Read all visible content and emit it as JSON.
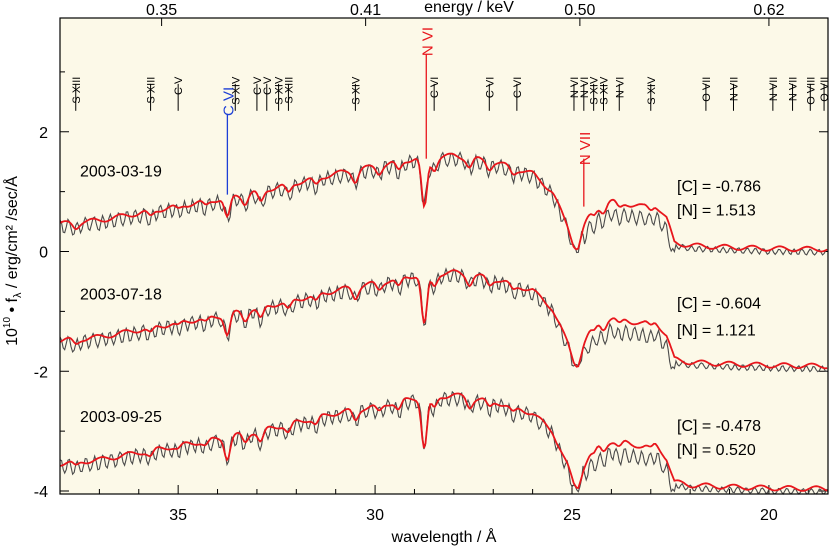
{
  "chart_data": {
    "type": "line",
    "xlabel": "wavelength / Å",
    "ylabel_prefix": "10",
    "ylabel_exp": "10",
    "ylabel_rest": " • f",
    "ylabel_sub": "λ",
    "ylabel_units": " / erg/cm² /sec/Å",
    "top_axis_label": "energy / keV",
    "x_reversed": true,
    "xlim": [
      38,
      18.5
    ],
    "ylim": [
      -4.05,
      3.9
    ],
    "x_ticks": [
      35,
      30,
      25,
      20
    ],
    "y_ticks": [
      2,
      0,
      -2,
      -4
    ],
    "top_ticks": [
      {
        "label": "0.35",
        "wavelength": 35.42
      },
      {
        "label": "0.41",
        "wavelength": 30.24
      },
      {
        "label": "0.50",
        "wavelength": 24.8
      },
      {
        "label": "0.62",
        "wavelength": 20.0
      }
    ],
    "colors": {
      "background": "#fcf9e8",
      "observed": "#4a4a4a",
      "model": "#e8161c",
      "carbon": "#1d3fd6"
    },
    "line_ids": [
      {
        "label": "S XIII",
        "w": 37.6
      },
      {
        "label": "S XIII",
        "w": 35.7
      },
      {
        "label": "C V",
        "w": 35.0
      },
      {
        "label": "S XIV",
        "w": 33.55
      },
      {
        "label": "C V",
        "w": 33.0
      },
      {
        "label": "C V",
        "w": 32.75
      },
      {
        "label": "S XIV",
        "w": 32.45
      },
      {
        "label": "S XIII",
        "w": 32.2
      },
      {
        "label": "S XIV",
        "w": 30.5
      },
      {
        "label": "C VI",
        "w": 28.5
      },
      {
        "label": "C VI",
        "w": 27.1
      },
      {
        "label": "C VI",
        "w": 26.4
      },
      {
        "label": "N VI",
        "w": 24.95
      },
      {
        "label": "N VI",
        "w": 24.7
      },
      {
        "label": "S XIV",
        "w": 24.45
      },
      {
        "label": "S XIV",
        "w": 24.2
      },
      {
        "label": "N VI",
        "w": 23.8
      },
      {
        "label": "S XIV",
        "w": 23.0
      },
      {
        "label": "O VII",
        "w": 21.6
      },
      {
        "label": "N VII",
        "w": 20.9
      },
      {
        "label": "N VII",
        "w": 19.9
      },
      {
        "label": "N VII",
        "w": 19.4
      },
      {
        "label": "O VIII",
        "w": 18.95
      },
      {
        "label": "O VII",
        "w": 18.6
      }
    ],
    "edge_labels": [
      {
        "label": "C VI",
        "color": "carbon",
        "w": 33.75,
        "y_top": 2.75,
        "y_bottom": 0.95
      },
      {
        "label": "N VI",
        "color": "model",
        "w": 28.7,
        "y_top": 3.75,
        "y_bottom": 1.55
      },
      {
        "label": "N VII",
        "color": "model",
        "w": 24.7,
        "y_top": 2.0,
        "y_bottom": 0.75
      }
    ],
    "epochs": [
      {
        "date": "2003-03-19",
        "offset": 0,
        "C": "-0.786",
        "N": "1.513",
        "date_y": 1.35,
        "C_y": 1.1,
        "N_y": 0.7
      },
      {
        "date": "2003-07-18",
        "offset": -1.95,
        "C": "-0.604",
        "N": "1.121",
        "date_y": -0.7,
        "C_y": -0.85,
        "N_y": -1.3
      },
      {
        "date": "2003-09-25",
        "offset": -4.0,
        "C": "-0.478",
        "N": "0.520",
        "date_y": -2.75,
        "C_y": -2.9,
        "N_y": -3.3
      }
    ],
    "continuum": [
      [
        38.0,
        0.46
      ],
      [
        37.0,
        0.52
      ],
      [
        36.0,
        0.64
      ],
      [
        35.0,
        0.76
      ],
      [
        34.0,
        0.87
      ],
      [
        33.0,
        1.0
      ],
      [
        32.0,
        1.15
      ],
      [
        31.0,
        1.3
      ],
      [
        30.0,
        1.42
      ],
      [
        29.0,
        1.55
      ],
      [
        28.0,
        1.6
      ],
      [
        27.0,
        1.5
      ],
      [
        26.0,
        1.3
      ],
      [
        25.5,
        1.0
      ],
      [
        25.1,
        0.4
      ],
      [
        24.95,
        0.1
      ],
      [
        24.85,
        0.05
      ],
      [
        24.7,
        0.4
      ],
      [
        24.5,
        0.7
      ],
      [
        24.2,
        0.82
      ],
      [
        23.8,
        0.85
      ],
      [
        23.5,
        0.78
      ],
      [
        23.2,
        0.75
      ],
      [
        22.9,
        0.8
      ],
      [
        22.6,
        0.55
      ],
      [
        22.4,
        0.15
      ],
      [
        22.0,
        0.1
      ],
      [
        21.0,
        0.07
      ],
      [
        20.0,
        0.05
      ],
      [
        19.0,
        0.04
      ],
      [
        18.5,
        0.04
      ]
    ],
    "absorptions": [
      {
        "w": 37.6,
        "d": 0.08
      },
      {
        "w": 35.7,
        "d": 0.1
      },
      {
        "w": 35.0,
        "d": 0.06
      },
      {
        "w": 34.3,
        "d": 0.08
      },
      {
        "w": 33.75,
        "d": 0.35
      },
      {
        "w": 33.3,
        "d": 0.15
      },
      {
        "w": 32.9,
        "d": 0.2
      },
      {
        "w": 32.2,
        "d": 0.15
      },
      {
        "w": 31.5,
        "d": 0.12
      },
      {
        "w": 30.5,
        "d": 0.18
      },
      {
        "w": 29.9,
        "d": 0.12
      },
      {
        "w": 29.4,
        "d": 0.15
      },
      {
        "w": 28.75,
        "d": 0.85
      },
      {
        "w": 28.5,
        "d": 0.2
      },
      {
        "w": 27.6,
        "d": 0.15
      },
      {
        "w": 27.1,
        "d": 0.12
      },
      {
        "w": 26.5,
        "d": 0.1
      },
      {
        "w": 24.45,
        "d": 0.12
      },
      {
        "w": 24.2,
        "d": 0.15
      },
      {
        "w": 23.8,
        "d": 0.12
      },
      {
        "w": 23.0,
        "d": 0.08
      }
    ]
  }
}
